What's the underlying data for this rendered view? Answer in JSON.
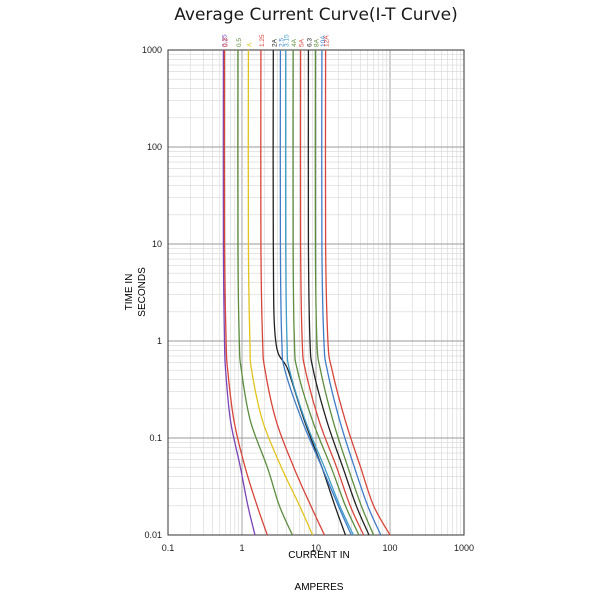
{
  "chart_data": {
    "type": "line",
    "title": "Average Current Curve(I-T Curve)",
    "xlabel_line1": "CURRENT IN",
    "xlabel_line2": "AMPERES",
    "ylabel_line1": "TIME IN",
    "ylabel_line2": "SECONDS",
    "x_scale": "log",
    "y_scale": "log",
    "xlim": [
      0.1,
      1000
    ],
    "ylim": [
      0.01,
      1000
    ],
    "x_ticks": [
      0.1,
      1,
      10,
      100,
      1000
    ],
    "x_tick_labels": [
      "0.1",
      "1",
      "10",
      "100",
      "1000"
    ],
    "y_ticks": [
      0.01,
      0.1,
      1,
      10,
      100,
      1000
    ],
    "y_tick_labels": [
      "0.01",
      "0.1",
      "1",
      "10",
      "100",
      "1000"
    ],
    "grid": true,
    "series": [
      {
        "name": "0.25",
        "color": "#7a45b8",
        "x": [
          0.56,
          0.56,
          0.58,
          0.6,
          0.7,
          0.95,
          1.2,
          1.5
        ],
        "y": [
          1000,
          10,
          1,
          0.5,
          0.15,
          0.05,
          0.02,
          0.01
        ]
      },
      {
        "name": "0.3",
        "color": "#d8453a",
        "x": [
          0.58,
          0.58,
          0.61,
          0.64,
          0.78,
          1.1,
          1.6,
          2.2
        ],
        "y": [
          1000,
          10,
          1,
          0.5,
          0.15,
          0.05,
          0.02,
          0.01
        ]
      },
      {
        "name": "0.5",
        "color": "#5c8d3e",
        "x": [
          0.88,
          0.88,
          0.92,
          0.98,
          1.3,
          2.2,
          3.2,
          4.8
        ],
        "y": [
          1000,
          10,
          1,
          0.5,
          0.15,
          0.05,
          0.02,
          0.01
        ]
      },
      {
        "name": "A",
        "color": "#e3c21b",
        "x": [
          1.22,
          1.22,
          1.28,
          1.35,
          1.9,
          3.4,
          6.0,
          9.0
        ],
        "y": [
          1000,
          10,
          1,
          0.5,
          0.15,
          0.05,
          0.02,
          0.01
        ]
      },
      {
        "name": "1.25",
        "color": "#d8453a",
        "x": [
          1.8,
          1.8,
          1.9,
          2.05,
          2.9,
          5.0,
          8.5,
          13
        ],
        "y": [
          1000,
          10,
          1,
          0.5,
          0.15,
          0.05,
          0.02,
          0.01
        ]
      },
      {
        "name": "2A",
        "color": "#222222",
        "x": [
          2.65,
          2.65,
          2.85,
          4.2,
          7.0,
          12,
          18,
          25
        ],
        "y": [
          1000,
          10,
          1,
          0.5,
          0.15,
          0.05,
          0.02,
          0.01
        ]
      },
      {
        "name": "2.5",
        "color": "#3f7cc8",
        "x": [
          3.3,
          3.3,
          3.45,
          3.8,
          6.5,
          12,
          20,
          30
        ],
        "y": [
          1000,
          10,
          1,
          0.5,
          0.15,
          0.05,
          0.02,
          0.01
        ]
      },
      {
        "name": "3.15",
        "color": "#3f9ec8",
        "x": [
          3.9,
          3.9,
          4.05,
          4.4,
          7.2,
          13,
          21,
          32
        ],
        "y": [
          1000,
          10,
          1,
          0.5,
          0.15,
          0.05,
          0.02,
          0.01
        ]
      },
      {
        "name": "4A",
        "color": "#5c8d3e",
        "x": [
          4.9,
          4.9,
          5.1,
          5.6,
          9.0,
          16,
          25,
          38
        ],
        "y": [
          1000,
          10,
          1,
          0.5,
          0.15,
          0.05,
          0.02,
          0.01
        ]
      },
      {
        "name": "5A",
        "color": "#d8453a",
        "x": [
          6.2,
          6.2,
          6.5,
          7.2,
          11,
          19,
          29,
          44
        ],
        "y": [
          1000,
          10,
          1,
          0.5,
          0.15,
          0.05,
          0.02,
          0.01
        ]
      },
      {
        "name": "6.3",
        "color": "#222222",
        "x": [
          7.9,
          7.9,
          8.3,
          9.2,
          14,
          23,
          35,
          52
        ],
        "y": [
          1000,
          10,
          1,
          0.5,
          0.15,
          0.05,
          0.02,
          0.01
        ]
      },
      {
        "name": "8A",
        "color": "#5c8d3e",
        "x": [
          9.8,
          9.8,
          10.3,
          11.5,
          17,
          27,
          41,
          60
        ],
        "y": [
          1000,
          10,
          1,
          0.5,
          0.15,
          0.05,
          0.02,
          0.01
        ]
      },
      {
        "name": "10A",
        "color": "#3f7cc8",
        "x": [
          12.0,
          12.0,
          12.8,
          14.2,
          21,
          33,
          50,
          75
        ],
        "y": [
          1000,
          10,
          1,
          0.5,
          0.15,
          0.05,
          0.02,
          0.01
        ]
      },
      {
        "name": "12A",
        "color": "#d8453a",
        "x": [
          13.5,
          13.5,
          14.5,
          16.5,
          25,
          40,
          60,
          100
        ],
        "y": [
          1000,
          10,
          1,
          0.5,
          0.15,
          0.05,
          0.02,
          0.01
        ]
      }
    ]
  }
}
